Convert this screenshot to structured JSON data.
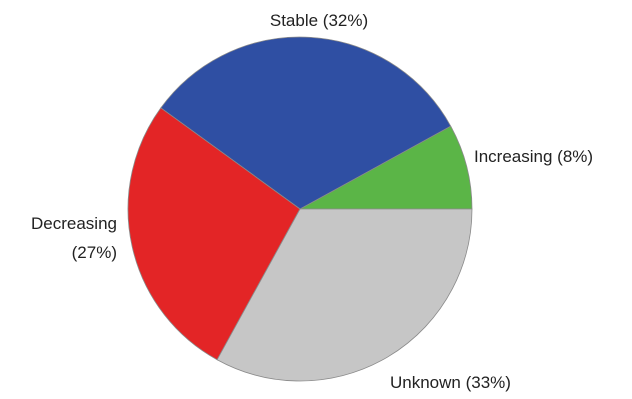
{
  "chart_data": {
    "type": "pie",
    "start_angle_deg": 0,
    "direction": "counterclockwise",
    "slices": [
      {
        "label": "Increasing (8%)",
        "category": "Increasing",
        "value": 8,
        "color": "#5bb547",
        "label_lines": [
          "Increasing (8%)"
        ]
      },
      {
        "label": "Stable (32%)",
        "category": "Stable",
        "value": 32,
        "color": "#2f4fa3",
        "label_lines": [
          "Stable (32%)"
        ]
      },
      {
        "label": "Decreasing (27%)",
        "category": "Decreasing",
        "value": 27,
        "color": "#e32526",
        "label_lines": [
          "Decreasing",
          "(27%)"
        ]
      },
      {
        "label": "Unknown (33%)",
        "category": "Unknown",
        "value": 33,
        "color": "#c6c6c6",
        "label_lines": [
          "Unknown (33%)"
        ]
      }
    ]
  }
}
